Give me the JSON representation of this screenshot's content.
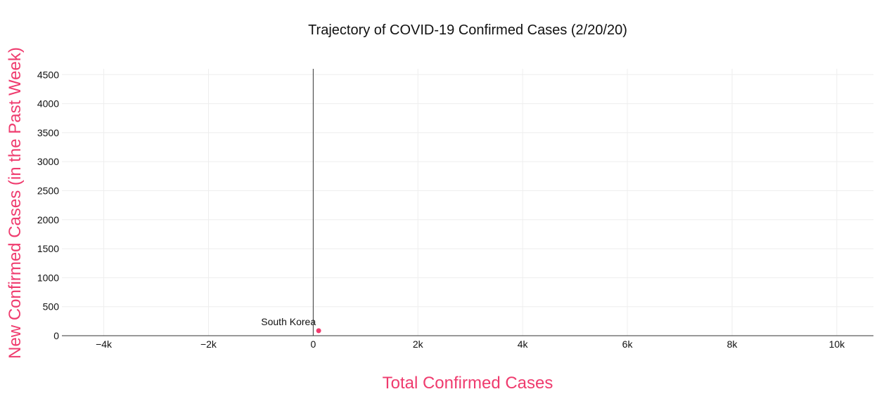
{
  "chart_data": {
    "type": "scatter",
    "title": "Trajectory of COVID-19 Confirmed Cases (2/20/20)",
    "xlabel": "Total Confirmed Cases",
    "ylabel": "New Confirmed Cases (in the Past Week)",
    "xlim": [
      -4800,
      10700
    ],
    "ylim": [
      0,
      4600
    ],
    "x_ticks": [
      -4000,
      -2000,
      0,
      2000,
      4000,
      6000,
      8000,
      10000
    ],
    "x_tick_labels": [
      "−4k",
      "−2k",
      "0",
      "2k",
      "4k",
      "6k",
      "8k",
      "10k"
    ],
    "y_ticks": [
      0,
      500,
      1000,
      1500,
      2000,
      2500,
      3000,
      3500,
      4000,
      4500
    ],
    "y_tick_labels": [
      "0",
      "500",
      "1000",
      "1500",
      "2000",
      "2500",
      "3000",
      "3500",
      "4000",
      "4500"
    ],
    "grid": true,
    "points": [
      {
        "label": "South Korea",
        "x": 104,
        "y": 86
      }
    ],
    "colors": {
      "point": "#ef3b6e",
      "axis_title": "#ef3b6e",
      "grid": "#eeeeee",
      "axis_line": "#333333"
    }
  }
}
